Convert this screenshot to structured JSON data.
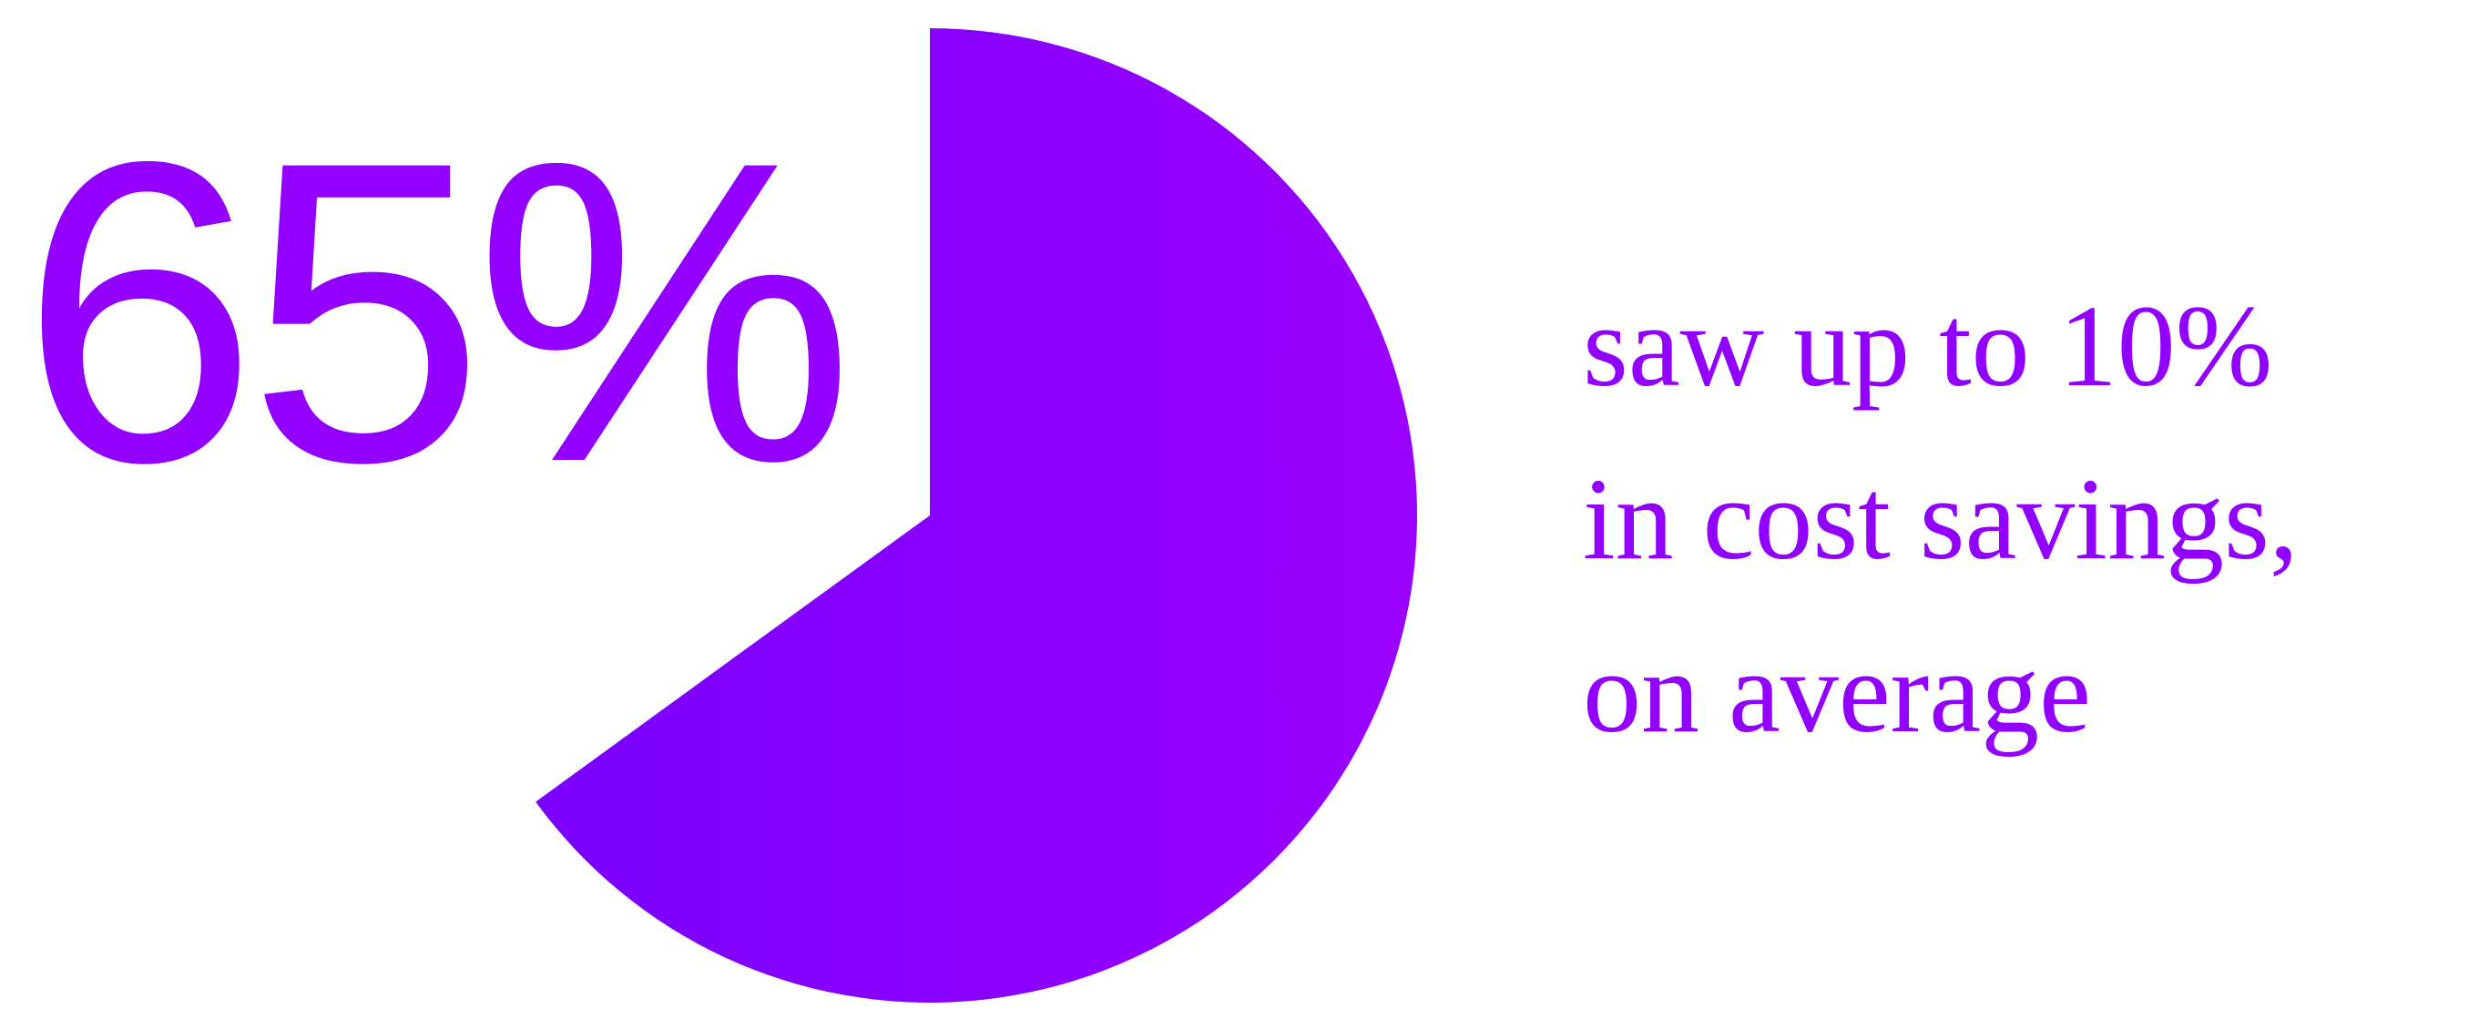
{
  "stat": {
    "value": "65%",
    "color": "#9200ff"
  },
  "caption": {
    "lines": [
      "saw up to 10%",
      "in cost savings,",
      "on average"
    ],
    "color": "#9200ff"
  },
  "chart_data": {
    "type": "pie",
    "title": "",
    "value_percent": 65,
    "start": "12 o'clock",
    "direction": "clockwise",
    "colors": {
      "fill_start": "#7a00ff",
      "fill_end": "#9a00ff",
      "remainder": "#ffffff"
    }
  }
}
